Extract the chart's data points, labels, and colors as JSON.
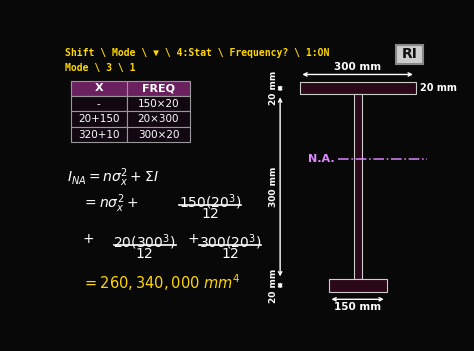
{
  "bg_color": "#080808",
  "title_text": "Shift \\ Mode \\ ▼ \\ 4:Stat \\ Frequency? \\ 1:ON\nMode \\ 3 \\ 1",
  "title_color": "#FFD700",
  "table_header_bg": "#6B2060",
  "table_header_color": "#FFFFFF",
  "table_bg": "#120812",
  "table_border_color": "#999999",
  "table_text_color": "#FFFFFF",
  "table_headers": [
    "X",
    "FREQ"
  ],
  "table_rows": [
    [
      "-",
      "150×20"
    ],
    [
      "20+150",
      "20×300"
    ],
    [
      "320+10",
      "300×20"
    ]
  ],
  "formula_color": "#FFFFFF",
  "result_color": "#FFD700",
  "na_color": "#DD88FF",
  "shape_color": "#2a0818",
  "shape_outline": "#CCCCCC",
  "dim_color": "#FFFFFF",
  "arrow_color": "#FFFFFF",
  "logo_bg": "#CCCCCC",
  "logo_text": "RI",
  "logo_text_color": "#111111"
}
